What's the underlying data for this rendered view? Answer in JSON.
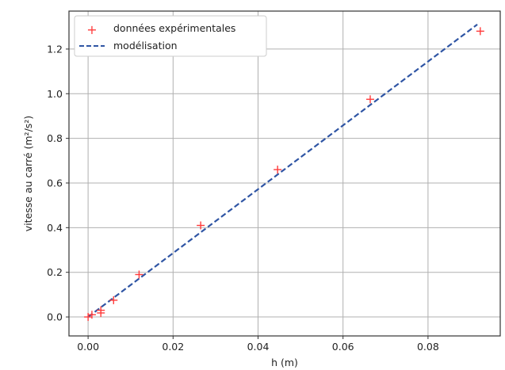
{
  "chart_data": {
    "type": "scatter",
    "xlabel": "h (m)",
    "ylabel": "vitesse au carré (m²/s²)",
    "xlim": [
      -0.0045,
      0.097
    ],
    "ylim": [
      -0.085,
      1.37
    ],
    "xticks": [
      0.0,
      0.02,
      0.04,
      0.06,
      0.08
    ],
    "xtick_labels": [
      "0.00",
      "0.02",
      "0.04",
      "0.06",
      "0.08"
    ],
    "yticks": [
      0.0,
      0.2,
      0.4,
      0.6,
      0.8,
      1.0,
      1.2
    ],
    "ytick_labels": [
      "0.0",
      "0.2",
      "0.4",
      "0.6",
      "0.8",
      "1.0",
      "1.2"
    ],
    "grid": true,
    "legend_position": "top-left",
    "series": [
      {
        "name": "données expérimentales",
        "kind": "scatter",
        "marker": "+",
        "color": "#ff3b3b",
        "x": [
          0.0,
          0.0009,
          0.003,
          0.003,
          0.006,
          0.012,
          0.0265,
          0.0446,
          0.0664,
          0.0923
        ],
        "y": [
          0.0,
          0.01,
          0.03,
          0.018,
          0.075,
          0.19,
          0.41,
          0.66,
          0.975,
          1.28
        ]
      },
      {
        "name": "modélisation",
        "kind": "line",
        "style": "dashed",
        "color": "#2f55a4",
        "x": [
          0.0,
          0.0916
        ],
        "y": [
          0.0,
          1.31
        ]
      }
    ]
  }
}
